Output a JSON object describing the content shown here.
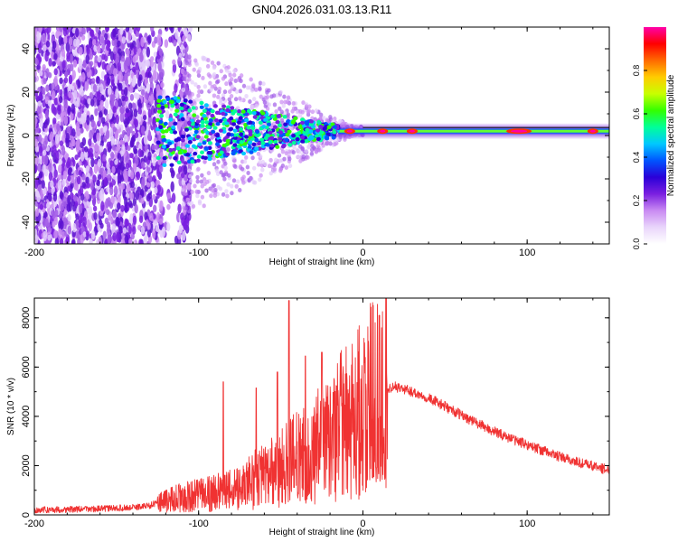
{
  "title": "GN04.2026.031.03.13.R11",
  "chart_data": [
    {
      "type": "heatmap",
      "xlabel": "Height of straight line (km)",
      "ylabel": "Frequency (Hz)",
      "xlim": [
        -200,
        150
      ],
      "ylim": [
        -50,
        50
      ],
      "x_ticks": [
        -200,
        -100,
        0,
        100
      ],
      "y_ticks": [
        -40,
        -20,
        0,
        20,
        40
      ],
      "colorbar": {
        "label": "Normalized spectral amplitude",
        "range": [
          0,
          1
        ],
        "ticks": [
          "0.0",
          "0.2",
          "0.4",
          "0.6",
          "0.8"
        ],
        "tick_values": [
          0.0,
          0.2,
          0.4,
          0.6,
          0.8
        ],
        "colors": [
          "#ffffff",
          "#e9d5fb",
          "#c98af2",
          "#7a1fe0",
          "#2a00d8",
          "#0055ff",
          "#00c8ff",
          "#00ff99",
          "#33ff00",
          "#c8ff00",
          "#ffcc00",
          "#ff6a00",
          "#ff0000",
          "#ff00a8"
        ]
      },
      "band": {
        "center_hz": 2,
        "noise_region_km": [
          -200,
          -105
        ],
        "gap_km": [
          -122,
          -112
        ],
        "transition_km": [
          -125,
          -15
        ],
        "locked_start_km": -15,
        "hot_spots_km": [
          -8,
          12,
          30,
          95,
          140
        ]
      }
    },
    {
      "type": "line",
      "xlabel": "Height of straight line (km)",
      "ylabel": "SNR (10 * v/v)",
      "xlim": [
        -200,
        150
      ],
      "ylim": [
        0,
        8800
      ],
      "x_ticks": [
        -200,
        -100,
        0,
        100
      ],
      "y_ticks": [
        0,
        2000,
        4000,
        6000,
        8000
      ],
      "series": [
        {
          "name": "SNR",
          "color": "#f03232",
          "x": [
            -200,
            -180,
            -160,
            -140,
            -130,
            -125,
            -120,
            -110,
            -100,
            -90,
            -80,
            -70,
            -60,
            -50,
            -40,
            -30,
            -20,
            -10,
            0,
            5,
            10,
            15,
            20,
            30,
            40,
            50,
            60,
            70,
            80,
            90,
            100,
            110,
            120,
            130,
            140,
            150
          ],
          "y": [
            200,
            220,
            250,
            300,
            380,
            500,
            600,
            700,
            800,
            900,
            1000,
            1300,
            1600,
            1900,
            2300,
            2700,
            3200,
            3800,
            4400,
            4800,
            5000,
            5150,
            5200,
            5000,
            4750,
            4400,
            4050,
            3700,
            3380,
            3100,
            2850,
            2600,
            2350,
            2150,
            1980,
            1820
          ]
        }
      ],
      "peaks": [
        {
          "x": -45,
          "y": 8700
        },
        {
          "x": 10,
          "y": 8100
        },
        {
          "x": -25,
          "y": 6600
        },
        {
          "x": -35,
          "y": 6450
        },
        {
          "x": -52,
          "y": 5800
        },
        {
          "x": -85,
          "y": 5400
        },
        {
          "x": -65,
          "y": 5150
        }
      ]
    }
  ]
}
